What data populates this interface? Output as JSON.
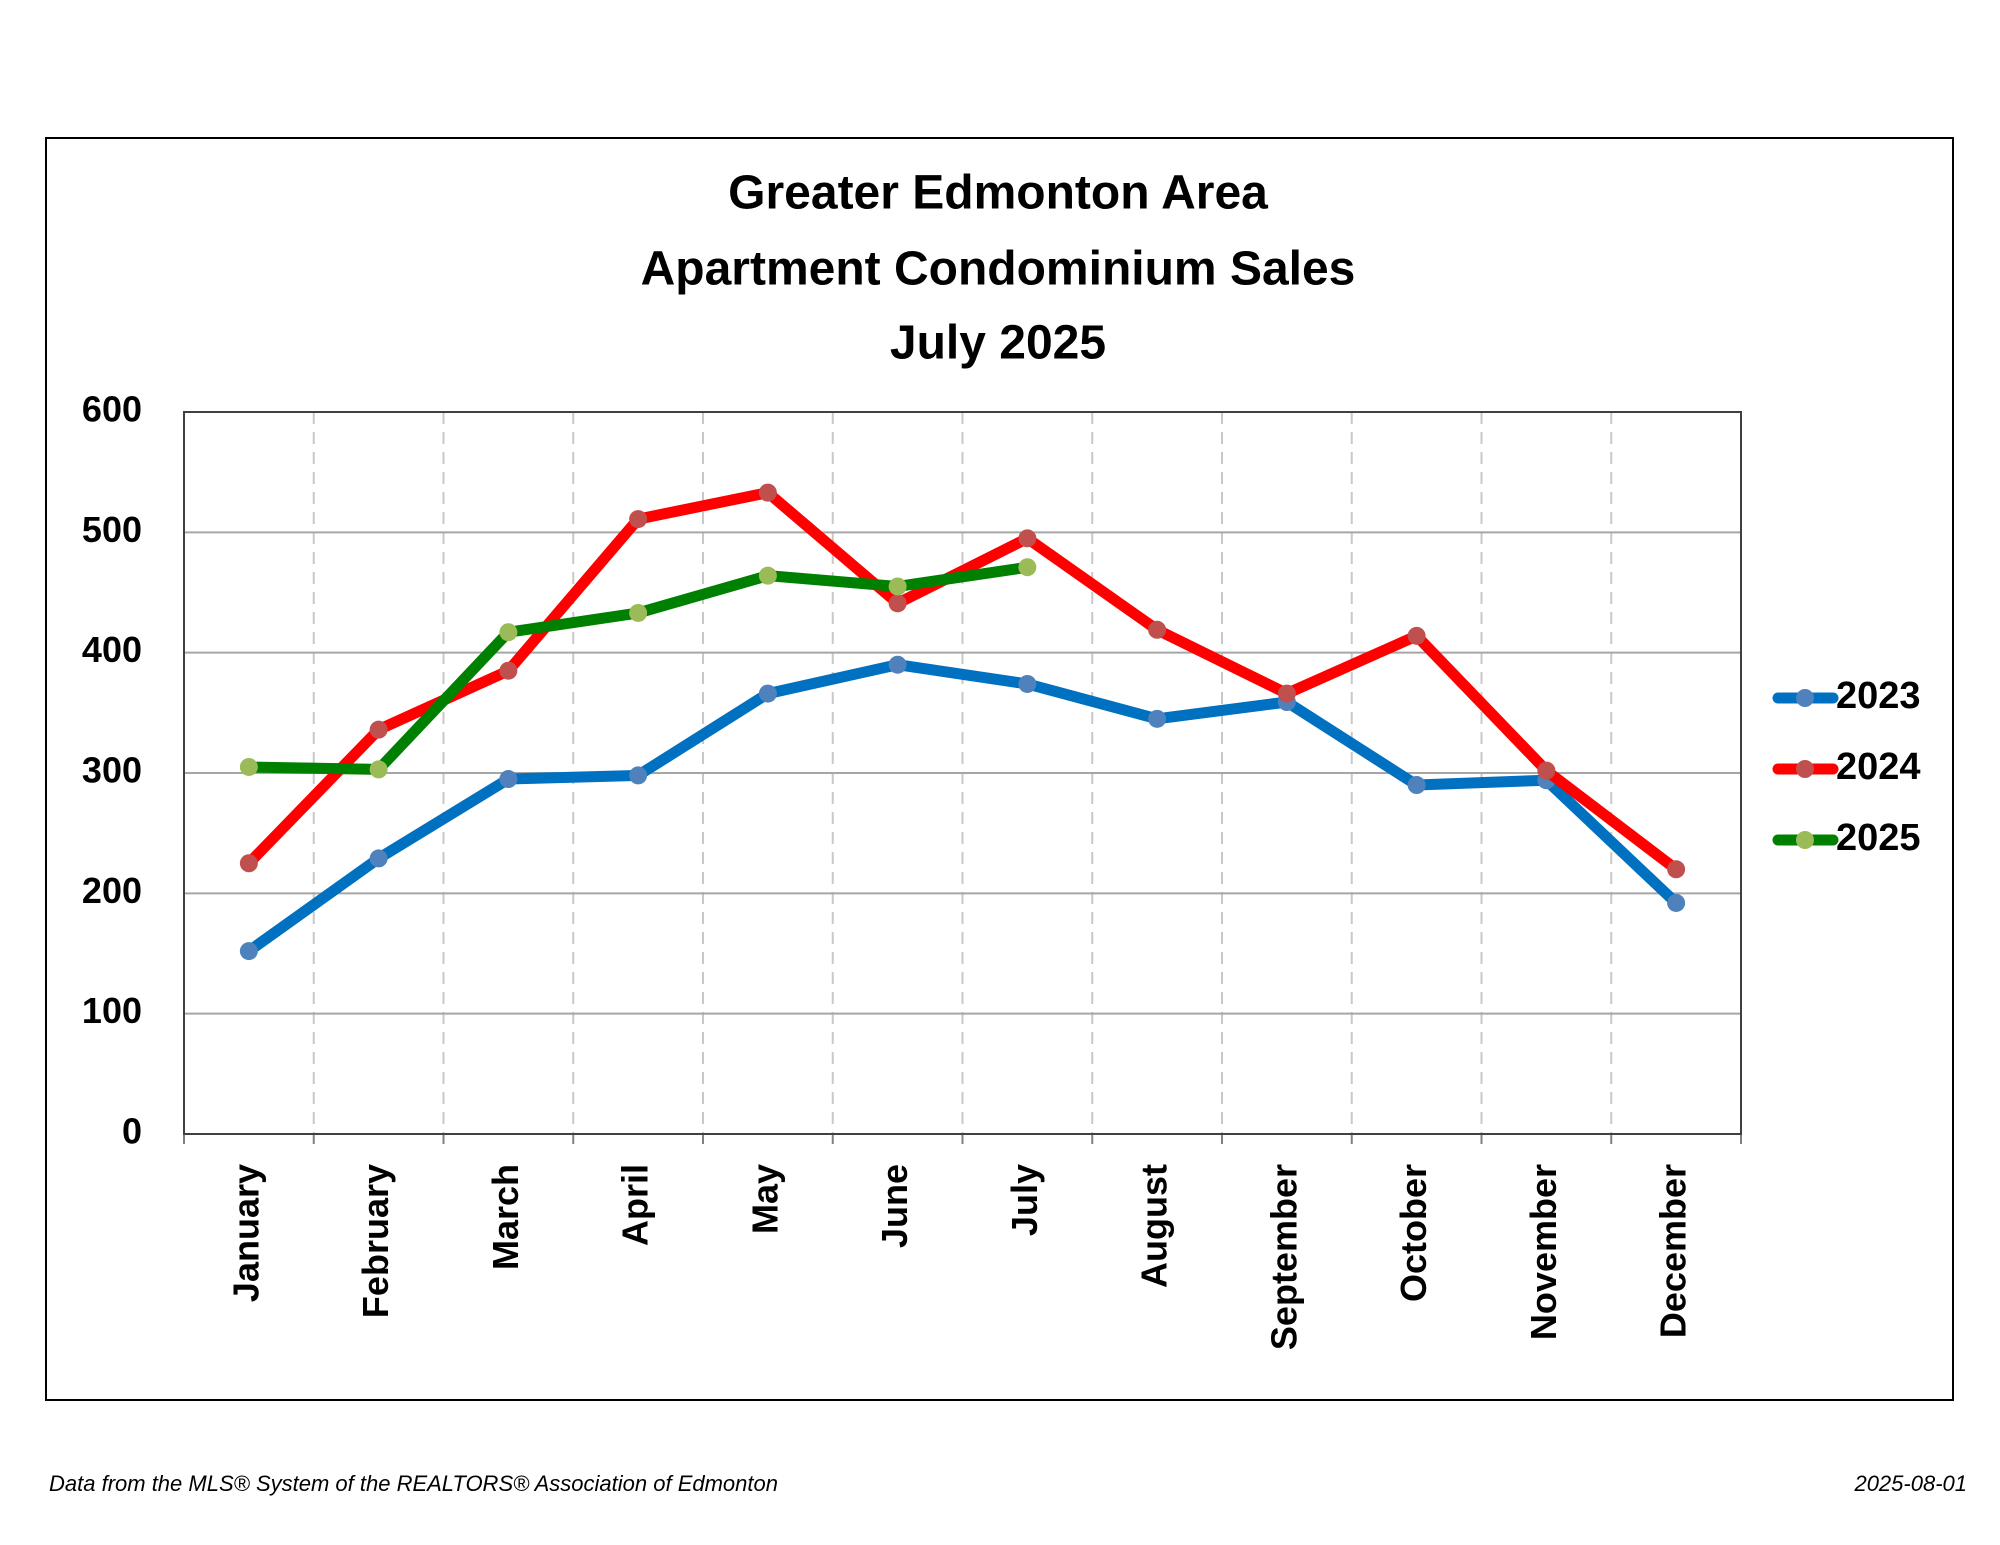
{
  "chart_data": {
    "type": "line",
    "title": [
      "Greater Edmonton Area",
      "Apartment Condominium Sales",
      "July 2025"
    ],
    "categories": [
      "January",
      "February",
      "March",
      "April",
      "May",
      "June",
      "July",
      "August",
      "September",
      "October",
      "November",
      "December"
    ],
    "series": [
      {
        "name": "2023",
        "color": "#0070c0",
        "marker_color": "#4f81bd",
        "values": [
          152,
          229,
          295,
          298,
          366,
          390,
          374,
          345,
          359,
          290,
          294,
          192
        ]
      },
      {
        "name": "2024",
        "color": "#ff0000",
        "marker_color": "#c0504d",
        "values": [
          225,
          336,
          385,
          511,
          533,
          441,
          495,
          419,
          366,
          414,
          302,
          220
        ]
      },
      {
        "name": "2025",
        "color": "#008000",
        "marker_color": "#9bbb59",
        "values": [
          305,
          303,
          417,
          433,
          464,
          455,
          471,
          null,
          null,
          null,
          null,
          null
        ]
      }
    ],
    "ylim": [
      0,
      600
    ],
    "yticks": [
      0,
      100,
      200,
      300,
      400,
      500,
      600
    ],
    "grid": true,
    "legend": "right",
    "footer_left": "Data from the MLS® System of the REALTORS® Association of Edmonton",
    "footer_right": "2025-08-01"
  }
}
